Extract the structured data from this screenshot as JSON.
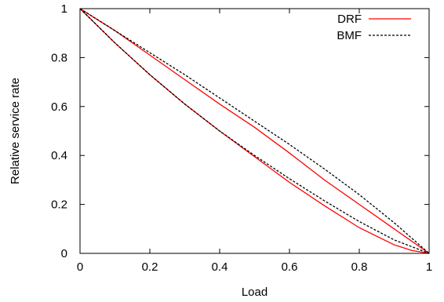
{
  "chart_data": {
    "type": "line",
    "title": "",
    "xlabel": "Load",
    "ylabel": "Relative service rate",
    "xlim": [
      0,
      1
    ],
    "ylim": [
      0,
      1
    ],
    "xticks": [
      "0",
      "0.2",
      "0.4",
      "0.6",
      "0.8",
      "1"
    ],
    "yticks": [
      "0",
      "0.2",
      "0.4",
      "0.6",
      "0.8",
      "1"
    ],
    "grid": false,
    "legend_position": "top-right",
    "series": [
      {
        "name": "DRF",
        "color": "#ff0000",
        "dash": "solid",
        "curves": [
          {
            "x": [
              0,
              0.1,
              0.2,
              0.3,
              0.4,
              0.5,
              0.6,
              0.7,
              0.8,
              0.9,
              1.0
            ],
            "y": [
              1.0,
              0.91,
              0.81,
              0.71,
              0.61,
              0.515,
              0.41,
              0.3,
              0.2,
              0.1,
              0.0
            ]
          },
          {
            "x": [
              0,
              0.1,
              0.2,
              0.3,
              0.4,
              0.5,
              0.6,
              0.7,
              0.8,
              0.85,
              0.9,
              0.95,
              1.0
            ],
            "y": [
              1.0,
              0.86,
              0.73,
              0.61,
              0.5,
              0.395,
              0.29,
              0.195,
              0.105,
              0.07,
              0.035,
              0.012,
              0.0
            ]
          }
        ]
      },
      {
        "name": "BMF",
        "color": "#000000",
        "dash": "dotted",
        "curves": [
          {
            "x": [
              0,
              0.1,
              0.2,
              0.3,
              0.4,
              0.5,
              0.6,
              0.7,
              0.8,
              0.9,
              1.0
            ],
            "y": [
              1.0,
              0.91,
              0.82,
              0.73,
              0.635,
              0.54,
              0.445,
              0.345,
              0.24,
              0.125,
              0.0
            ]
          },
          {
            "x": [
              0,
              0.1,
              0.2,
              0.3,
              0.4,
              0.5,
              0.6,
              0.7,
              0.8,
              0.9,
              1.0
            ],
            "y": [
              1.0,
              0.86,
              0.73,
              0.61,
              0.5,
              0.4,
              0.305,
              0.215,
              0.13,
              0.055,
              0.0
            ]
          }
        ]
      }
    ]
  }
}
